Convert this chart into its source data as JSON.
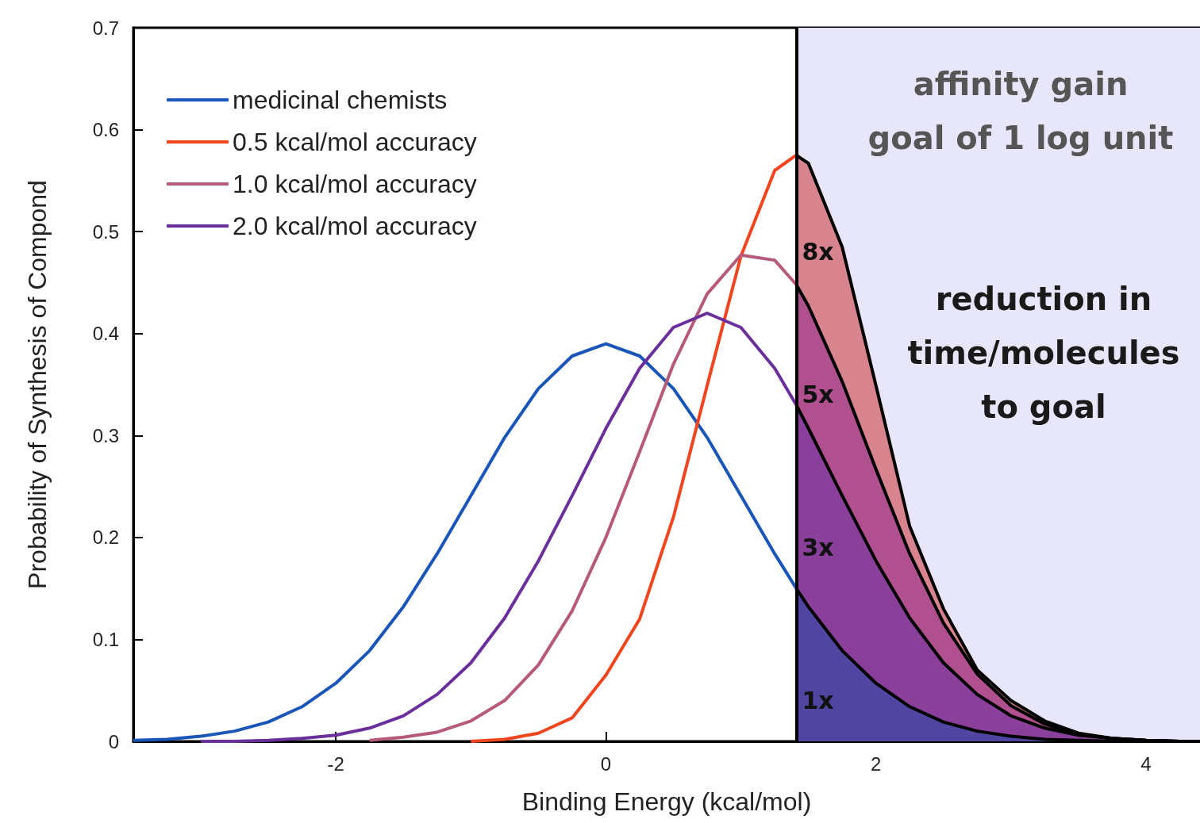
{
  "chart_data": {
    "type": "line",
    "xlabel": "Binding Energy (kcal/mol)",
    "ylabel": "Probability of Synthesis of Compond",
    "xlim": [
      -3.5,
      4.4
    ],
    "xticks": [
      -2,
      0,
      2,
      4
    ],
    "ylim": [
      0,
      0.7
    ],
    "yticks": [
      0,
      0.1,
      0.2,
      0.3,
      0.4,
      0.5,
      0.6,
      0.7
    ],
    "grid": false,
    "legend": "top left",
    "marker": "none",
    "line_style": "solid",
    "series": [
      {
        "name": "medicinal chemists",
        "color": "#1a55b8",
        "x": [
          -3.5,
          -3.25,
          -3,
          -2.75,
          -2.5,
          -2.25,
          -2,
          -1.75,
          -1.5,
          -1.25,
          -1,
          -0.75,
          -0.5,
          -0.25,
          0,
          0.25,
          0.5,
          0.75,
          1,
          1.25,
          1.41
        ],
        "values": [
          0.001,
          0.002,
          0.005,
          0.01,
          0.019,
          0.034,
          0.057,
          0.089,
          0.132,
          0.184,
          0.241,
          0.298,
          0.346,
          0.378,
          0.39,
          0.378,
          0.346,
          0.298,
          0.241,
          0.184,
          0.15
        ]
      },
      {
        "name": "0.5 kcal/mol accuracy",
        "color": "#f0451e",
        "x": [
          -1,
          -0.75,
          -0.5,
          -0.25,
          0,
          0.25,
          0.5,
          0.75,
          1,
          1.25,
          1.41
        ],
        "values": [
          0,
          0.002,
          0.008,
          0.023,
          0.065,
          0.12,
          0.22,
          0.349,
          0.476,
          0.56,
          0.575
        ]
      },
      {
        "name": "1.0 kcal/mol accuracy",
        "color": "#b65a7c",
        "x": [
          -1.75,
          -1.5,
          -1.25,
          -1,
          -0.75,
          -0.5,
          -0.25,
          0,
          0.25,
          0.5,
          0.75,
          1,
          1.25,
          1.41
        ],
        "values": [
          0.001,
          0.004,
          0.009,
          0.02,
          0.04,
          0.075,
          0.128,
          0.2,
          0.284,
          0.37,
          0.439,
          0.477,
          0.472,
          0.448
        ]
      },
      {
        "name": "2.0 kcal/mol accuracy",
        "color": "#6a2f9a",
        "x": [
          -3,
          -2.75,
          -2.5,
          -2.25,
          -2,
          -1.75,
          -1.5,
          -1.25,
          -1,
          -0.75,
          -0.5,
          -0.25,
          0,
          0.25,
          0.5,
          0.75,
          1,
          1.25,
          1.41
        ],
        "values": [
          0,
          0,
          0.001,
          0.003,
          0.006,
          0.013,
          0.025,
          0.046,
          0.077,
          0.121,
          0.177,
          0.241,
          0.307,
          0.366,
          0.406,
          0.42,
          0.406,
          0.366,
          0.33
        ]
      },
      {
        "type": "area",
        "color": "#d8848f",
        "x": [
          1.41,
          1.5,
          1.75,
          2,
          2.25,
          2.5,
          2.75,
          3,
          3.25,
          3.5,
          3.75,
          4,
          4.25,
          4.4
        ],
        "values": [
          0.575,
          0.567,
          0.485,
          0.349,
          0.211,
          0.13,
          0.07,
          0.04,
          0.02,
          0.008,
          0.003,
          0.001,
          0,
          0
        ]
      },
      {
        "type": "area",
        "color": "#b0508e",
        "x": [
          1.41,
          1.5,
          1.75,
          2,
          2.25,
          2.5,
          2.75,
          3,
          3.25,
          3.5,
          3.75,
          4,
          4.25,
          4.4
        ],
        "values": [
          0.448,
          0.427,
          0.353,
          0.267,
          0.184,
          0.116,
          0.066,
          0.035,
          0.017,
          0.007,
          0.003,
          0.001,
          0,
          0
        ]
      },
      {
        "type": "area",
        "color": "#8a3f9a",
        "x": [
          1.41,
          1.5,
          1.75,
          2,
          2.25,
          2.5,
          2.75,
          3,
          3.25,
          3.5,
          3.75,
          4,
          4.25,
          4.4
        ],
        "values": [
          0.33,
          0.307,
          0.241,
          0.177,
          0.121,
          0.077,
          0.046,
          0.025,
          0.013,
          0.006,
          0.003,
          0.001,
          0,
          0
        ]
      },
      {
        "type": "area",
        "color": "#5045a0",
        "x": [
          1.41,
          1.5,
          1.75,
          2,
          2.25,
          2.5,
          2.75,
          3,
          3.25,
          3.5,
          3.75,
          4,
          4.25,
          4.4
        ],
        "values": [
          0.15,
          0.132,
          0.089,
          0.057,
          0.034,
          0.019,
          0.01,
          0.005,
          0.002,
          0.001,
          0,
          0,
          0,
          0
        ]
      }
    ],
    "ref_lines": [
      {
        "axis": "x",
        "value": 1.41,
        "color": "#000000"
      }
    ],
    "bands": [
      {
        "axis": "x",
        "from": 1.41,
        "to": 4.4,
        "color": "#e8e6fa"
      }
    ],
    "annotations": [
      "affinity gain\ngoal of 1 log unit",
      "reduction in\ntime/molecules\nto goal",
      "8x",
      "5x",
      "3x",
      "1x"
    ]
  }
}
